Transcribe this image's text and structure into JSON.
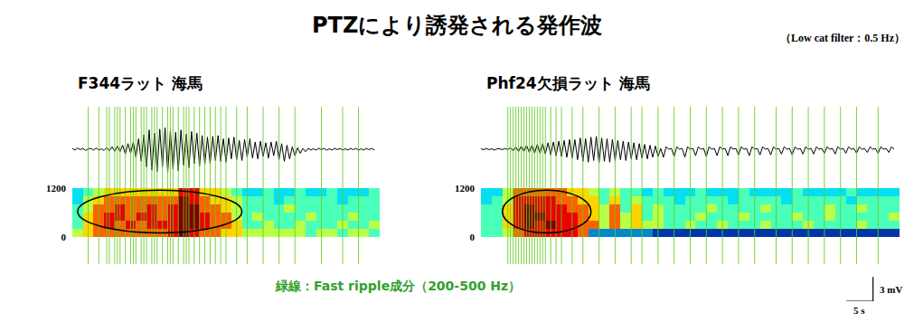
{
  "title": "PTZにより誘発される発作波",
  "filter_note": "（Low cat filter：0.5 Hz）",
  "note": {
    "text": "緑線：Fast ripple成分（200-500 Hz）",
    "color": "#33a02c"
  },
  "scale_bar": {
    "time": 5,
    "time_label": "5 s",
    "amplitude": 3,
    "amplitude_label": "3 mV"
  },
  "chart_data": [
    {
      "type": "heatmap",
      "title": "F344ラット 海馬",
      "xlim": [
        0,
        58
      ],
      "ylim": [
        0,
        1200
      ],
      "yticks": [
        0,
        1200
      ],
      "tick_labels": "y",
      "x": [
        1,
        3,
        5,
        7,
        9,
        11,
        13,
        15,
        17,
        19,
        21,
        23,
        25,
        27,
        29,
        31,
        33,
        35,
        37,
        39,
        41,
        43,
        45,
        47,
        49,
        51,
        53,
        55,
        57
      ],
      "y": [
        100,
        300,
        500,
        700,
        900,
        1100
      ],
      "zlim": [
        0,
        9
      ],
      "z": [
        [
          5,
          6,
          7,
          7,
          7,
          7,
          7,
          7,
          7,
          8,
          9,
          8,
          7,
          7,
          6,
          6,
          5,
          5,
          5,
          5,
          5,
          5,
          4,
          5,
          5,
          4,
          5,
          5,
          4
        ],
        [
          4,
          6,
          7,
          8,
          7,
          8,
          7,
          8,
          8,
          8,
          9,
          9,
          8,
          7,
          7,
          6,
          4,
          4,
          5,
          4,
          4,
          5,
          4,
          4,
          4,
          5,
          4,
          4,
          5
        ],
        [
          4,
          6,
          7,
          8,
          8,
          7,
          8,
          8,
          7,
          8,
          9,
          9,
          8,
          7,
          7,
          5,
          4,
          5,
          4,
          4,
          4,
          4,
          5,
          4,
          4,
          4,
          5,
          4,
          4
        ],
        [
          4,
          5,
          7,
          7,
          8,
          7,
          7,
          8,
          7,
          8,
          9,
          9,
          7,
          7,
          6,
          5,
          4,
          4,
          4,
          4,
          5,
          4,
          4,
          4,
          4,
          4,
          4,
          4,
          4
        ],
        [
          3,
          5,
          6,
          7,
          7,
          7,
          7,
          7,
          7,
          7,
          9,
          8,
          7,
          6,
          6,
          5,
          4,
          4,
          4,
          3,
          4,
          4,
          4,
          4,
          4,
          3,
          4,
          4,
          4
        ],
        [
          3,
          4,
          5,
          6,
          6,
          6,
          6,
          6,
          6,
          6,
          8,
          8,
          6,
          6,
          5,
          4,
          3,
          3,
          4,
          3,
          3,
          4,
          3,
          3,
          4,
          3,
          3,
          3,
          4
        ]
      ],
      "trace": {
        "type": "line",
        "color": "#000000",
        "ylim": [
          -4.5,
          4.5
        ],
        "x": [
          0,
          0.5,
          1,
          1.5,
          2,
          2.5,
          3,
          3.5,
          4,
          4.5,
          5,
          5.5,
          6,
          6.5,
          7,
          7.5,
          8,
          8.5,
          9,
          9.5,
          10,
          10.5,
          11,
          11.5,
          12,
          12.5,
          13,
          13.5,
          14,
          14.5,
          15,
          15.5,
          16,
          16.5,
          17,
          17.5,
          18,
          18.5,
          19,
          19.5,
          20,
          20.5,
          21,
          21.5,
          22,
          22.5,
          23,
          23.5,
          24,
          24.5,
          25,
          25.5,
          26,
          26.5,
          27,
          27.5,
          28,
          28.5,
          29,
          29.5,
          30,
          30.5,
          31,
          31.5,
          32,
          32.5,
          33,
          33.5,
          34,
          34.5,
          35,
          35.5,
          36,
          36.5,
          37,
          37.5,
          38,
          38.5,
          39,
          39.5,
          40,
          40.5,
          41,
          41.5,
          42,
          42.5,
          43,
          43.5,
          44,
          44.5,
          45,
          45.5,
          46,
          46.5,
          47,
          47.5,
          48,
          48.5,
          49,
          49.5,
          50,
          50.5,
          51,
          51.5,
          52,
          52.5,
          53,
          53.5,
          54,
          54.5,
          55,
          55.5,
          56,
          56.5,
          57
        ],
        "values": [
          0.1,
          -0.1,
          0.15,
          -0.05,
          0.1,
          -0.15,
          0.05,
          0.1,
          -0.1,
          0.15,
          -0.1,
          0.05,
          -0.15,
          0.2,
          -0.2,
          0.3,
          -0.25,
          0.4,
          -0.3,
          0.5,
          -0.6,
          0.7,
          -0.5,
          0.9,
          -1.0,
          1.3,
          -1.5,
          1.8,
          -2.2,
          2.4,
          -2.6,
          2.0,
          -2.8,
          2.5,
          -2.2,
          2.7,
          -2.9,
          2.3,
          -2.5,
          2.1,
          -2.7,
          2.4,
          -2.0,
          1.9,
          -2.3,
          2.2,
          -1.8,
          2.0,
          -2.1,
          1.7,
          -1.9,
          1.5,
          -1.8,
          1.6,
          -1.4,
          1.7,
          -1.5,
          1.3,
          -1.6,
          1.4,
          -1.2,
          1.5,
          -1.3,
          1.1,
          -1.4,
          1.2,
          -1.0,
          1.3,
          -1.1,
          0.9,
          -1.2,
          1.0,
          -0.9,
          0.8,
          -1.1,
          0.9,
          -0.8,
          1.0,
          -1.3,
          0.7,
          -1.5,
          0.5,
          -1.2,
          0.3,
          -0.8,
          0.2,
          -0.5,
          0.1,
          -0.3,
          0.1,
          -0.1,
          0.05,
          -0.1,
          0.1,
          -0.05,
          0.1,
          -0.1,
          0.05,
          -0.1,
          0.1,
          -0.05,
          0.1,
          -0.1,
          0.05,
          -0.1,
          0.1,
          -0.05,
          0.1,
          -0.1,
          0.05,
          -0.1,
          0.1,
          -0.05,
          0.1,
          -0.1
        ]
      },
      "fast_ripples": {
        "color": "#66cc22",
        "x": [
          3,
          5,
          6.5,
          7,
          8,
          8.5,
          9,
          10,
          11,
          11.5,
          12,
          13,
          13.5,
          14,
          15,
          15.5,
          16,
          17,
          18,
          18.5,
          19,
          20,
          21,
          21.5,
          22,
          23,
          24,
          25,
          26,
          27,
          28,
          29,
          31,
          33,
          36,
          39,
          42,
          47,
          51,
          54
        ]
      },
      "ellipse": {
        "x": [
          1,
          32
        ],
        "y": [
          100,
          1150
        ]
      }
    },
    {
      "type": "heatmap",
      "title": "Phf24欠損ラット 海馬",
      "xlim": [
        0,
        78
      ],
      "ylim": [
        0,
        1200
      ],
      "yticks": [
        0,
        1200
      ],
      "tick_labels": "y",
      "x": [
        1,
        3,
        5,
        7,
        9,
        11,
        13,
        15,
        17,
        19,
        21,
        23,
        25,
        27,
        29,
        31,
        33,
        35,
        37,
        39,
        41,
        43,
        45,
        47,
        49,
        51,
        53,
        55,
        57,
        59,
        61,
        63,
        65,
        67,
        69,
        71,
        73,
        75,
        77
      ],
      "y": [
        100,
        300,
        500,
        700,
        900,
        1100
      ],
      "zlim": [
        0,
        9
      ],
      "z": [
        [
          4,
          4,
          5,
          7,
          8,
          8,
          8,
          8,
          8,
          7,
          2,
          2,
          2,
          2,
          2,
          2,
          1,
          1,
          1,
          1,
          1,
          1,
          1,
          1,
          1,
          1,
          1,
          1,
          1,
          1,
          1,
          1,
          1,
          1,
          1,
          1,
          1,
          1,
          1
        ],
        [
          4,
          4,
          6,
          8,
          9,
          8,
          9,
          8,
          8,
          7,
          7,
          5,
          7,
          5,
          6,
          5,
          5,
          4,
          4,
          5,
          4,
          4,
          5,
          4,
          4,
          4,
          5,
          4,
          4,
          4,
          5,
          4,
          4,
          4,
          4,
          5,
          4,
          4,
          4
        ],
        [
          4,
          4,
          6,
          8,
          9,
          9,
          8,
          8,
          8,
          7,
          6,
          5,
          7,
          5,
          6,
          4,
          5,
          4,
          4,
          4,
          5,
          4,
          4,
          4,
          5,
          4,
          4,
          4,
          4,
          5,
          4,
          4,
          5,
          4,
          4,
          4,
          4,
          4,
          5
        ],
        [
          4,
          4,
          6,
          8,
          9,
          8,
          8,
          8,
          7,
          7,
          6,
          5,
          7,
          4,
          6,
          4,
          5,
          4,
          4,
          4,
          4,
          5,
          4,
          4,
          4,
          4,
          5,
          4,
          4,
          4,
          4,
          4,
          5,
          4,
          4,
          5,
          4,
          4,
          4
        ],
        [
          3,
          4,
          5,
          8,
          8,
          8,
          8,
          7,
          7,
          6,
          6,
          4,
          6,
          4,
          5,
          4,
          4,
          4,
          3,
          4,
          4,
          4,
          4,
          3,
          4,
          4,
          4,
          4,
          3,
          4,
          4,
          4,
          4,
          4,
          3,
          4,
          4,
          4,
          4
        ],
        [
          3,
          3,
          5,
          7,
          7,
          7,
          7,
          7,
          6,
          6,
          5,
          4,
          5,
          4,
          4,
          3,
          4,
          3,
          3,
          3,
          4,
          3,
          3,
          3,
          4,
          3,
          3,
          3,
          3,
          4,
          3,
          3,
          3,
          3,
          4,
          3,
          3,
          3,
          3
        ]
      ],
      "trace": {
        "type": "line",
        "color": "#000000",
        "ylim": [
          -4.5,
          4.5
        ],
        "x": [
          0,
          0.5,
          1,
          1.5,
          2,
          2.5,
          3,
          3.5,
          4,
          4.5,
          5,
          5.5,
          6,
          6.5,
          7,
          7.5,
          8,
          8.5,
          9,
          9.5,
          10,
          10.5,
          11,
          11.5,
          12,
          12.5,
          13,
          13.5,
          14,
          14.5,
          15,
          15.5,
          16,
          16.5,
          17,
          17.5,
          18,
          18.5,
          19,
          19.5,
          20,
          20.5,
          21,
          21.5,
          22,
          22.5,
          23,
          23.5,
          24,
          24.5,
          25,
          25.5,
          26,
          26.5,
          27,
          27.5,
          28,
          28.5,
          29,
          29.5,
          30,
          30.5,
          31,
          31.5,
          32,
          32.5,
          33,
          33.5,
          34,
          34.5,
          35,
          35.5,
          36,
          36.5,
          37,
          37.5,
          38,
          38.5,
          39,
          39.5,
          40,
          40.5,
          41,
          41.5,
          42,
          42.5,
          43,
          43.5,
          44,
          44.5,
          45,
          45.5,
          46,
          46.5,
          47,
          47.5,
          48,
          48.5,
          49,
          49.5,
          50,
          50.5,
          51,
          51.5,
          52,
          52.5,
          53,
          53.5,
          54,
          54.5,
          55,
          55.5,
          56,
          56.5,
          57,
          57.5,
          58,
          58.5,
          59,
          59.5,
          60,
          60.5,
          61,
          61.5,
          62,
          62.5,
          63,
          63.5,
          64,
          64.5,
          65,
          65.5,
          66,
          66.5,
          67,
          67.5,
          68,
          68.5,
          69,
          69.5,
          70,
          70.5,
          71,
          71.5,
          72,
          72.5,
          73,
          73.5,
          74,
          74.5,
          75,
          75.5,
          76,
          76.5,
          77
        ],
        "values": [
          0.05,
          -0.05,
          0.1,
          -0.05,
          0.05,
          -0.1,
          0.05,
          0.05,
          -0.05,
          0.1,
          -0.05,
          0.2,
          -0.2,
          0.3,
          -0.3,
          0.4,
          -0.3,
          0.5,
          -0.4,
          0.5,
          -0.5,
          0.6,
          -0.5,
          0.7,
          -0.6,
          0.8,
          -0.7,
          0.9,
          -0.8,
          1.0,
          -0.9,
          1.1,
          -1.0,
          1.2,
          -1.1,
          1.2,
          -1.3,
          1.4,
          -1.5,
          1.3,
          -1.6,
          1.5,
          -1.4,
          1.6,
          -1.7,
          1.4,
          -1.5,
          1.3,
          -1.6,
          1.2,
          -1.4,
          1.1,
          -1.3,
          1.0,
          -1.4,
          0.9,
          -1.2,
          0.8,
          -1.3,
          0.7,
          -1.1,
          0.6,
          -1.2,
          0.5,
          -1.0,
          0.4,
          -0.9,
          0.1,
          -1.0,
          0.3,
          0.0,
          0.1,
          -0.9,
          0.3,
          0.0,
          0.1,
          -1.0,
          0.3,
          0.0,
          0.1,
          -0.8,
          0.3,
          0.0,
          0.1,
          -0.9,
          0.3,
          0.0,
          0.1,
          -0.8,
          0.3,
          0.0,
          0.1,
          -0.8,
          0.3,
          0.0,
          0.1,
          -0.7,
          0.3,
          0.0,
          0.1,
          -0.8,
          0.3,
          0.0,
          0.1,
          -0.7,
          0.3,
          0.0,
          0.1,
          -0.7,
          0.3,
          0.0,
          0.1,
          -0.6,
          0.3,
          0.0,
          0.1,
          -0.7,
          0.3,
          0.0,
          0.1,
          -0.6,
          0.3,
          0.0,
          0.1,
          -0.6,
          0.3,
          0.0,
          0.1,
          -0.5,
          0.3,
          0.0,
          0.1,
          -0.6,
          0.3,
          0.0,
          0.1,
          -0.5,
          0.3,
          0.0,
          0.1,
          -0.5,
          0.3,
          0.0,
          0.1,
          -0.4,
          0.3,
          0.0,
          0.1,
          -0.5,
          0.3,
          0.0,
          0.1,
          -0.4,
          0.3,
          0.0
        ]
      },
      "fast_ripples": {
        "color": "#66cc22",
        "x": [
          5,
          5.5,
          6,
          6.5,
          7,
          7.5,
          8,
          8.5,
          9,
          9.5,
          10,
          10.5,
          11,
          11.5,
          12,
          13,
          14,
          15,
          17,
          19,
          22,
          25,
          28,
          30,
          33,
          36,
          39,
          42,
          45,
          48,
          51,
          55,
          58,
          61,
          64,
          67,
          70,
          74
        ]
      },
      "ellipse": {
        "x": [
          4,
          20.5
        ],
        "y": [
          100,
          1150
        ]
      }
    }
  ]
}
